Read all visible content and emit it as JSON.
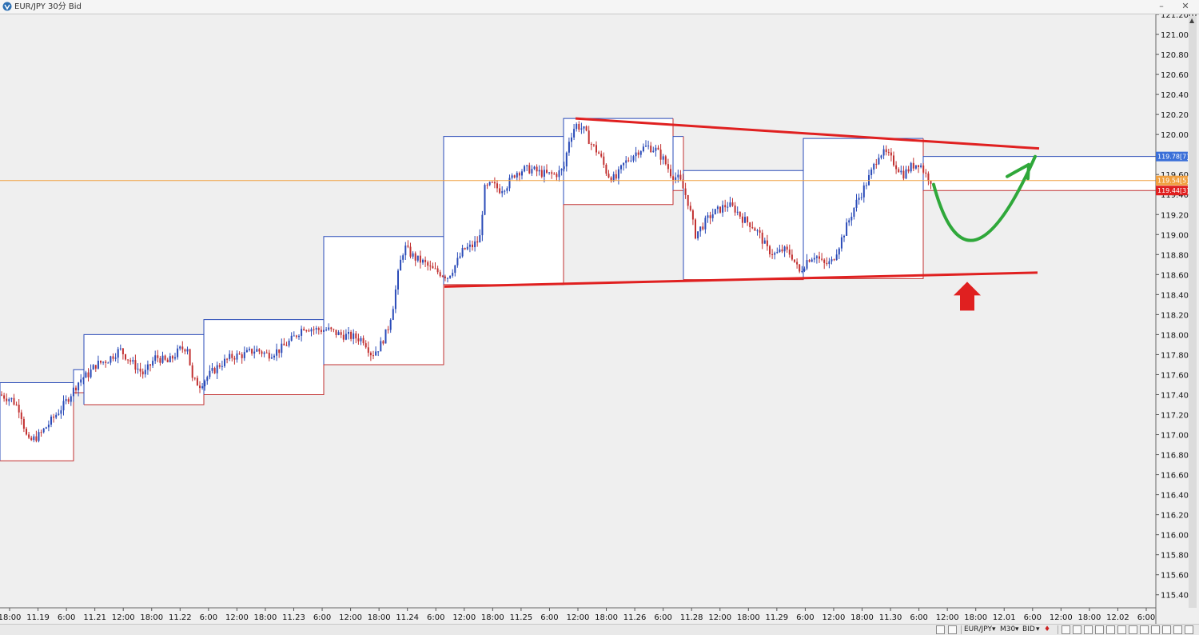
{
  "window": {
    "title": "EUR/JPY 30分 Bid",
    "minimize": "–",
    "close": "✕"
  },
  "statusbar": {
    "symbol": "EUR/JPY",
    "timeframe": "M30",
    "price_type": "BID"
  },
  "chart_data": {
    "type": "candlestick",
    "y_axis": {
      "side": "right",
      "ylim": [
        115.27,
        121.2
      ],
      "step": 0.2,
      "tick_suffix": "[0"
    },
    "x_axis": {
      "tick_labels": [
        "18:00",
        "11.19",
        "6:00",
        "11.21",
        "12:00",
        "18:00",
        "11.22",
        "6:00",
        "12:00",
        "18:00",
        "11.23",
        "6:00",
        "12:00",
        "18:00",
        "11.24",
        "6:00",
        "12:00",
        "18:00",
        "11.25",
        "6:00",
        "12:00",
        "18:00",
        "11.26",
        "6:00",
        "11.28",
        "12:00",
        "18:00",
        "11.29",
        "6:00",
        "12:00",
        "18:00",
        "11.30",
        "6:00",
        "12:00",
        "18:00",
        "12.01",
        "6:00",
        "12:00",
        "18:00",
        "12.02",
        "6:00"
      ]
    },
    "price_tags": [
      {
        "label": "119.78[7]",
        "value": 119.78,
        "color": "#3a6fd8"
      },
      {
        "label": "119.54[5]",
        "value": 119.54,
        "color": "#f0a040"
      },
      {
        "label": "119.44[3]",
        "value": 119.44,
        "color": "#e02020"
      }
    ],
    "current_price_line": 119.54,
    "session_boxes": [
      {
        "x0": 0,
        "x1": 92,
        "high": 117.52,
        "low": 116.74
      },
      {
        "x0": 92,
        "x1": 105,
        "high": 117.65,
        "low": 117.42
      },
      {
        "x0": 105,
        "x1": 255,
        "high": 118.0,
        "low": 117.3
      },
      {
        "x0": 255,
        "x1": 405,
        "high": 118.15,
        "low": 117.4
      },
      {
        "x0": 405,
        "x1": 555,
        "high": 118.98,
        "low": 117.7
      },
      {
        "x0": 555,
        "x1": 705,
        "high": 119.98,
        "low": 118.5
      },
      {
        "x0": 705,
        "x1": 842,
        "high": 120.16,
        "low": 119.3
      },
      {
        "x0": 842,
        "x1": 855,
        "high": 119.98,
        "low": 119.44
      },
      {
        "x0": 855,
        "x1": 1005,
        "high": 119.64,
        "low": 118.55
      },
      {
        "x0": 1005,
        "x1": 1155,
        "high": 119.96,
        "low": 118.56
      },
      {
        "x0": 1155,
        "x1": 1446,
        "high": 119.78,
        "low": 119.44
      }
    ],
    "price_path": [
      [
        0,
        117.4
      ],
      [
        15,
        117.35
      ],
      [
        25,
        117.25
      ],
      [
        35,
        116.92
      ],
      [
        50,
        117.0
      ],
      [
        65,
        117.15
      ],
      [
        80,
        117.3
      ],
      [
        92,
        117.45
      ],
      [
        100,
        117.55
      ],
      [
        110,
        117.6
      ],
      [
        120,
        117.7
      ],
      [
        135,
        117.75
      ],
      [
        150,
        117.85
      ],
      [
        165,
        117.72
      ],
      [
        180,
        117.6
      ],
      [
        195,
        117.78
      ],
      [
        210,
        117.72
      ],
      [
        225,
        117.85
      ],
      [
        235,
        117.88
      ],
      [
        240,
        117.55
      ],
      [
        250,
        117.5
      ],
      [
        262,
        117.6
      ],
      [
        275,
        117.7
      ],
      [
        290,
        117.78
      ],
      [
        305,
        117.8
      ],
      [
        320,
        117.85
      ],
      [
        335,
        117.8
      ],
      [
        350,
        117.85
      ],
      [
        365,
        117.95
      ],
      [
        380,
        118.08
      ],
      [
        395,
        118.05
      ],
      [
        410,
        118.05
      ],
      [
        425,
        118.0
      ],
      [
        440,
        117.98
      ],
      [
        455,
        117.95
      ],
      [
        465,
        117.8
      ],
      [
        475,
        117.88
      ],
      [
        485,
        118.05
      ],
      [
        492,
        118.3
      ],
      [
        500,
        118.7
      ],
      [
        506,
        118.88
      ],
      [
        512,
        118.82
      ],
      [
        520,
        118.76
      ],
      [
        530,
        118.72
      ],
      [
        540,
        118.65
      ],
      [
        550,
        118.62
      ],
      [
        560,
        118.58
      ],
      [
        570,
        118.7
      ],
      [
        580,
        118.85
      ],
      [
        590,
        118.88
      ],
      [
        600,
        118.95
      ],
      [
        606,
        119.45
      ],
      [
        615,
        119.5
      ],
      [
        625,
        119.45
      ],
      [
        635,
        119.5
      ],
      [
        645,
        119.62
      ],
      [
        655,
        119.65
      ],
      [
        665,
        119.65
      ],
      [
        675,
        119.62
      ],
      [
        685,
        119.6
      ],
      [
        695,
        119.6
      ],
      [
        705,
        119.65
      ],
      [
        712,
        119.95
      ],
      [
        720,
        120.1
      ],
      [
        730,
        120.05
      ],
      [
        740,
        119.9
      ],
      [
        750,
        119.8
      ],
      [
        760,
        119.6
      ],
      [
        770,
        119.55
      ],
      [
        780,
        119.7
      ],
      [
        790,
        119.78
      ],
      [
        800,
        119.85
      ],
      [
        810,
        119.88
      ],
      [
        820,
        119.85
      ],
      [
        830,
        119.75
      ],
      [
        840,
        119.6
      ],
      [
        850,
        119.55
      ],
      [
        860,
        119.35
      ],
      [
        870,
        119.0
      ],
      [
        880,
        119.1
      ],
      [
        890,
        119.2
      ],
      [
        900,
        119.25
      ],
      [
        910,
        119.3
      ],
      [
        920,
        119.25
      ],
      [
        930,
        119.15
      ],
      [
        940,
        119.1
      ],
      [
        950,
        119.0
      ],
      [
        960,
        118.85
      ],
      [
        970,
        118.8
      ],
      [
        980,
        118.85
      ],
      [
        990,
        118.8
      ],
      [
        1000,
        118.62
      ],
      [
        1010,
        118.75
      ],
      [
        1020,
        118.8
      ],
      [
        1030,
        118.7
      ],
      [
        1040,
        118.72
      ],
      [
        1050,
        118.9
      ],
      [
        1060,
        119.1
      ],
      [
        1070,
        119.3
      ],
      [
        1080,
        119.45
      ],
      [
        1090,
        119.62
      ],
      [
        1100,
        119.82
      ],
      [
        1110,
        119.8
      ],
      [
        1120,
        119.7
      ],
      [
        1130,
        119.6
      ],
      [
        1140,
        119.68
      ],
      [
        1150,
        119.72
      ],
      [
        1158,
        119.6
      ],
      [
        1165,
        119.54
      ]
    ],
    "trendlines": [
      {
        "x0": 720,
        "y0": 120.16,
        "x1": 1300,
        "y1": 119.86,
        "color": "#e02020"
      },
      {
        "x0": 556,
        "y0": 118.48,
        "x1": 1298,
        "y1": 118.62,
        "color": "#e02020"
      }
    ],
    "projection_curve": [
      [
        1168,
        119.5
      ],
      [
        1210,
        118.64
      ],
      [
        1295,
        119.5
      ]
    ],
    "projection_arrowhead": [
      [
        1260,
        119.58
      ],
      [
        1287,
        119.7
      ],
      [
        1286,
        119.56
      ]
    ],
    "up_arrow": {
      "x": 1210,
      "tip": 118.56,
      "color": "#e02020"
    }
  }
}
